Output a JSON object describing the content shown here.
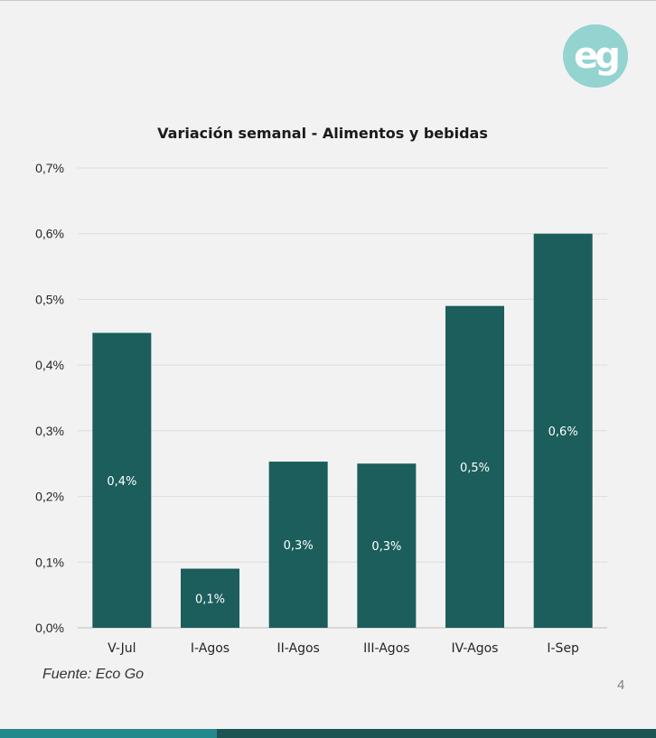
{
  "logo": {
    "text": "eg",
    "color": "#93d3d0"
  },
  "footer": {
    "source": "Fuente: Eco Go",
    "page_number": "4"
  },
  "colors": {
    "bar": "#1b5e5c",
    "accent_left": "#22898c",
    "accent_right": "#1b5452"
  },
  "chart_data": {
    "type": "bar",
    "title": "Variación semanal - Alimentos y bebidas",
    "xlabel": "",
    "ylabel": "",
    "categories": [
      "V-Jul",
      "I-Agos",
      "II-Agos",
      "III-Agos",
      "IV-Agos",
      "I-Sep"
    ],
    "values": [
      0.449,
      0.09,
      0.253,
      0.25,
      0.49,
      0.6
    ],
    "data_labels": [
      "0,4%",
      "0,1%",
      "0,3%",
      "0,3%",
      "0,5%",
      "0,6%"
    ],
    "y_ticks": [
      0,
      0.1,
      0.2,
      0.3,
      0.4,
      0.5,
      0.6,
      0.7
    ],
    "y_tick_labels": [
      "0,0%",
      "0,1%",
      "0,2%",
      "0,3%",
      "0,4%",
      "0,5%",
      "0,6%",
      "0,7%"
    ],
    "ylim": [
      0,
      0.7
    ],
    "grid": true,
    "legend": "none"
  }
}
